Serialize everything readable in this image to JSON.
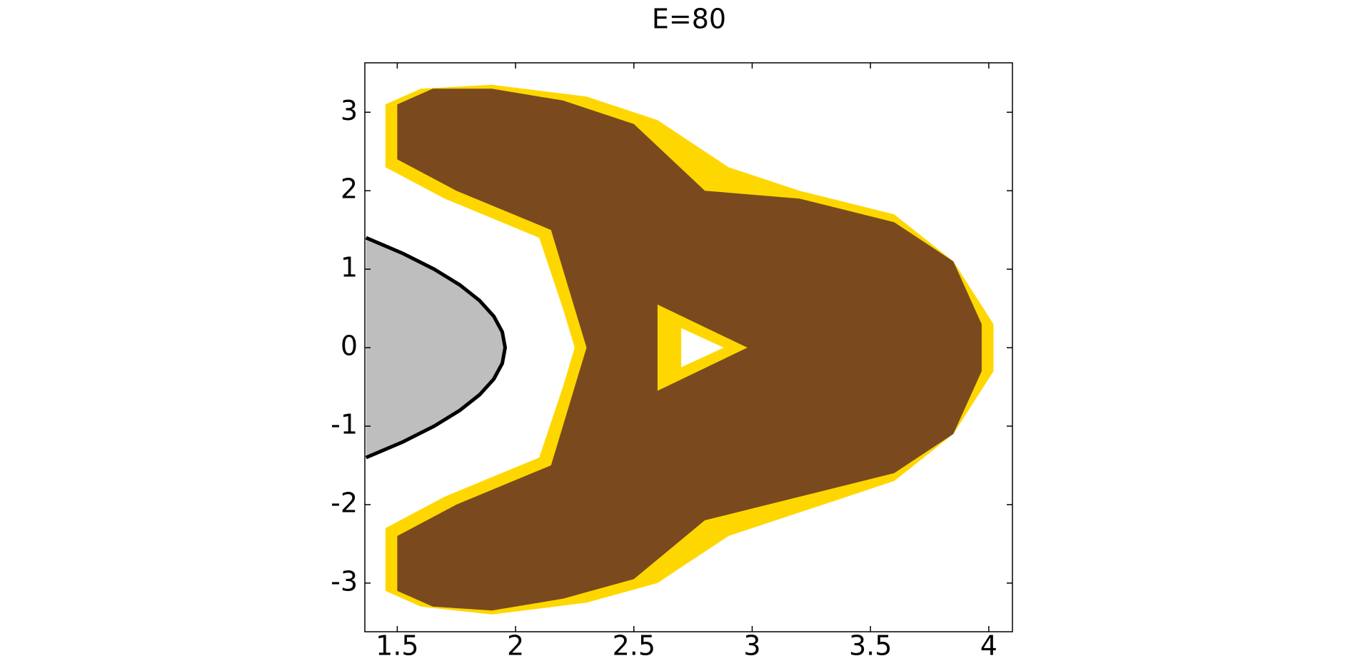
{
  "chart_data": {
    "type": "line",
    "title": "E=80",
    "xlim": [
      1.363,
      4.1
    ],
    "ylim": [
      -3.62,
      3.63
    ],
    "xticks": [
      1.5,
      2,
      2.5,
      3,
      3.5,
      4
    ],
    "yticks": [
      -3,
      -2,
      -1,
      0,
      1,
      2,
      3
    ],
    "series": [
      {
        "color": "#ffd700",
        "fill": "#ffd700",
        "x": [
          1.45,
          1.6,
          1.9,
          2.3,
          2.6,
          2.9,
          3.2,
          3.6,
          3.85,
          4.02,
          4.02,
          3.85,
          3.6,
          3.2,
          2.9,
          2.6,
          2.3,
          1.9,
          1.6,
          1.45,
          1.45,
          1.7,
          2.1,
          2.2,
          2.25,
          2.2,
          2.1,
          1.7,
          1.45
        ],
        "y": [
          3.1,
          3.3,
          3.35,
          3.2,
          2.9,
          2.3,
          2.0,
          1.7,
          1.1,
          0.3,
          -0.3,
          -1.1,
          -1.7,
          -2.1,
          -2.4,
          -3.0,
          -3.25,
          -3.4,
          -3.3,
          -3.1,
          -2.3,
          -1.9,
          -1.4,
          -0.5,
          0,
          0.5,
          1.4,
          1.9,
          2.3
        ]
      },
      {
        "color": "#7a4a1e",
        "fill": "#7a4a1e",
        "x": [
          1.5,
          1.65,
          1.9,
          2.2,
          2.5,
          2.8,
          3.2,
          3.6,
          3.85,
          3.97,
          3.97,
          3.85,
          3.6,
          3.2,
          2.8,
          2.5,
          2.2,
          1.9,
          1.65,
          1.5,
          1.5,
          1.75,
          2.15,
          2.25,
          2.3,
          2.25,
          2.15,
          1.75,
          1.5
        ],
        "y": [
          3.1,
          3.3,
          3.3,
          3.15,
          2.85,
          2.0,
          1.9,
          1.6,
          1.1,
          0.3,
          -0.3,
          -1.1,
          -1.6,
          -1.9,
          -2.2,
          -2.95,
          -3.2,
          -3.35,
          -3.3,
          -3.1,
          -2.4,
          -2.0,
          -1.5,
          -0.5,
          0,
          0.5,
          1.5,
          2.0,
          2.4
        ]
      },
      {
        "color": "#ffd700",
        "fill": "#ffd700",
        "x": [
          2.6,
          2.98,
          2.6
        ],
        "y": [
          0.55,
          0,
          -0.55
        ]
      },
      {
        "color": "#ffffff",
        "fill": "#ffffff",
        "x": [
          2.7,
          2.88,
          2.7
        ],
        "y": [
          0.25,
          0,
          -0.25
        ]
      },
      {
        "color": "#000000",
        "fill": "#bebebe",
        "x": [
          1.368,
          1.524,
          1.656,
          1.764,
          1.848,
          1.908,
          1.944,
          1.956,
          1.944,
          1.908,
          1.848,
          1.764,
          1.656,
          1.524,
          1.368
        ],
        "y": [
          -1.4,
          -1.2,
          -1.0,
          -0.8,
          -0.6,
          -0.4,
          -0.2,
          0,
          0.2,
          0.4,
          0.6,
          0.8,
          1.0,
          1.2,
          1.4
        ]
      }
    ]
  }
}
